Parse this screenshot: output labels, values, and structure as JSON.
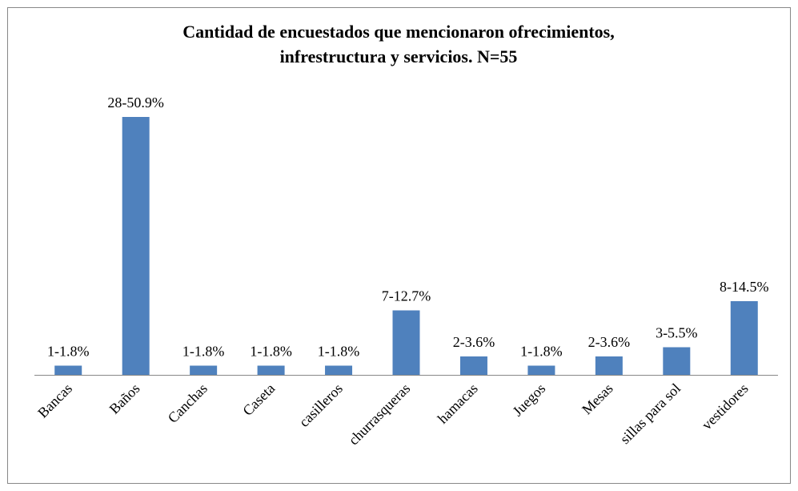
{
  "chart_data": {
    "type": "bar",
    "title": [
      "Cantidad de encuestados que mencionaron ofrecimientos,",
      "infrestructura y servicios. N=55"
    ],
    "categories": [
      "Bancas",
      "Baños",
      "Canchas",
      "Caseta",
      "casilleros",
      "churrasqueras",
      "hamacas",
      "Juegos",
      "Mesas",
      "sillas para sol",
      "vestidores"
    ],
    "values": [
      1,
      28,
      1,
      1,
      1,
      7,
      2,
      1,
      2,
      3,
      8
    ],
    "value_labels": [
      "1-1.8%",
      "28-50.9%",
      "1-1.8%",
      "1-1.8%",
      "1-1.8%",
      "7-12.7%",
      "2-3.6%",
      "1-1.8%",
      "2-3.6%",
      "3-5.5%",
      "8-14.5%"
    ],
    "color": "#4f81bd"
  }
}
